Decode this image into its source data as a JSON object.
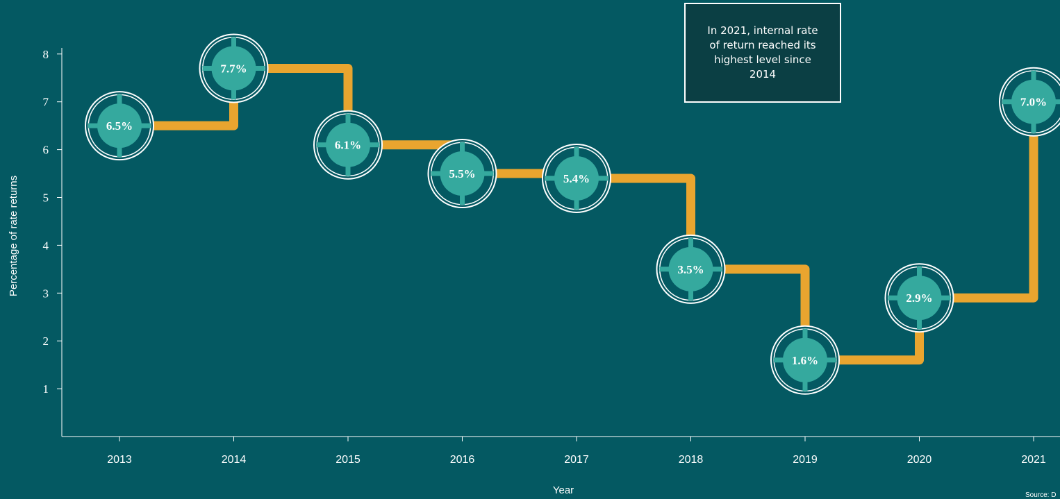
{
  "annotation": "In 2021, internal rate of return reached its highest level since 2014",
  "source": "Source: D",
  "colors": {
    "background": "#045962",
    "step_line": "#e9a52f",
    "marker_fill": "#35a99e",
    "marker_ring": "#ffffff",
    "annotation_bg": "#0b3f44"
  },
  "chart_data": {
    "type": "line",
    "step": true,
    "x": [
      "2013",
      "2014",
      "2015",
      "2016",
      "2017",
      "2018",
      "2019",
      "2020",
      "2021"
    ],
    "values": [
      6.5,
      7.7,
      6.1,
      5.5,
      5.4,
      3.5,
      1.6,
      2.9,
      7.0
    ],
    "data_labels": [
      "6.5%",
      "7.7%",
      "6.1%",
      "5.5%",
      "5.4%",
      "3.5%",
      "1.6%",
      "2.9%",
      "7.0%"
    ],
    "xlabel": "Year",
    "ylabel": "Percentage of rate returns",
    "yticks": [
      "1",
      "2",
      "3",
      "4",
      "5",
      "6",
      "7",
      "8"
    ],
    "ylim": [
      0,
      8
    ],
    "grid": false,
    "legend": "none"
  }
}
